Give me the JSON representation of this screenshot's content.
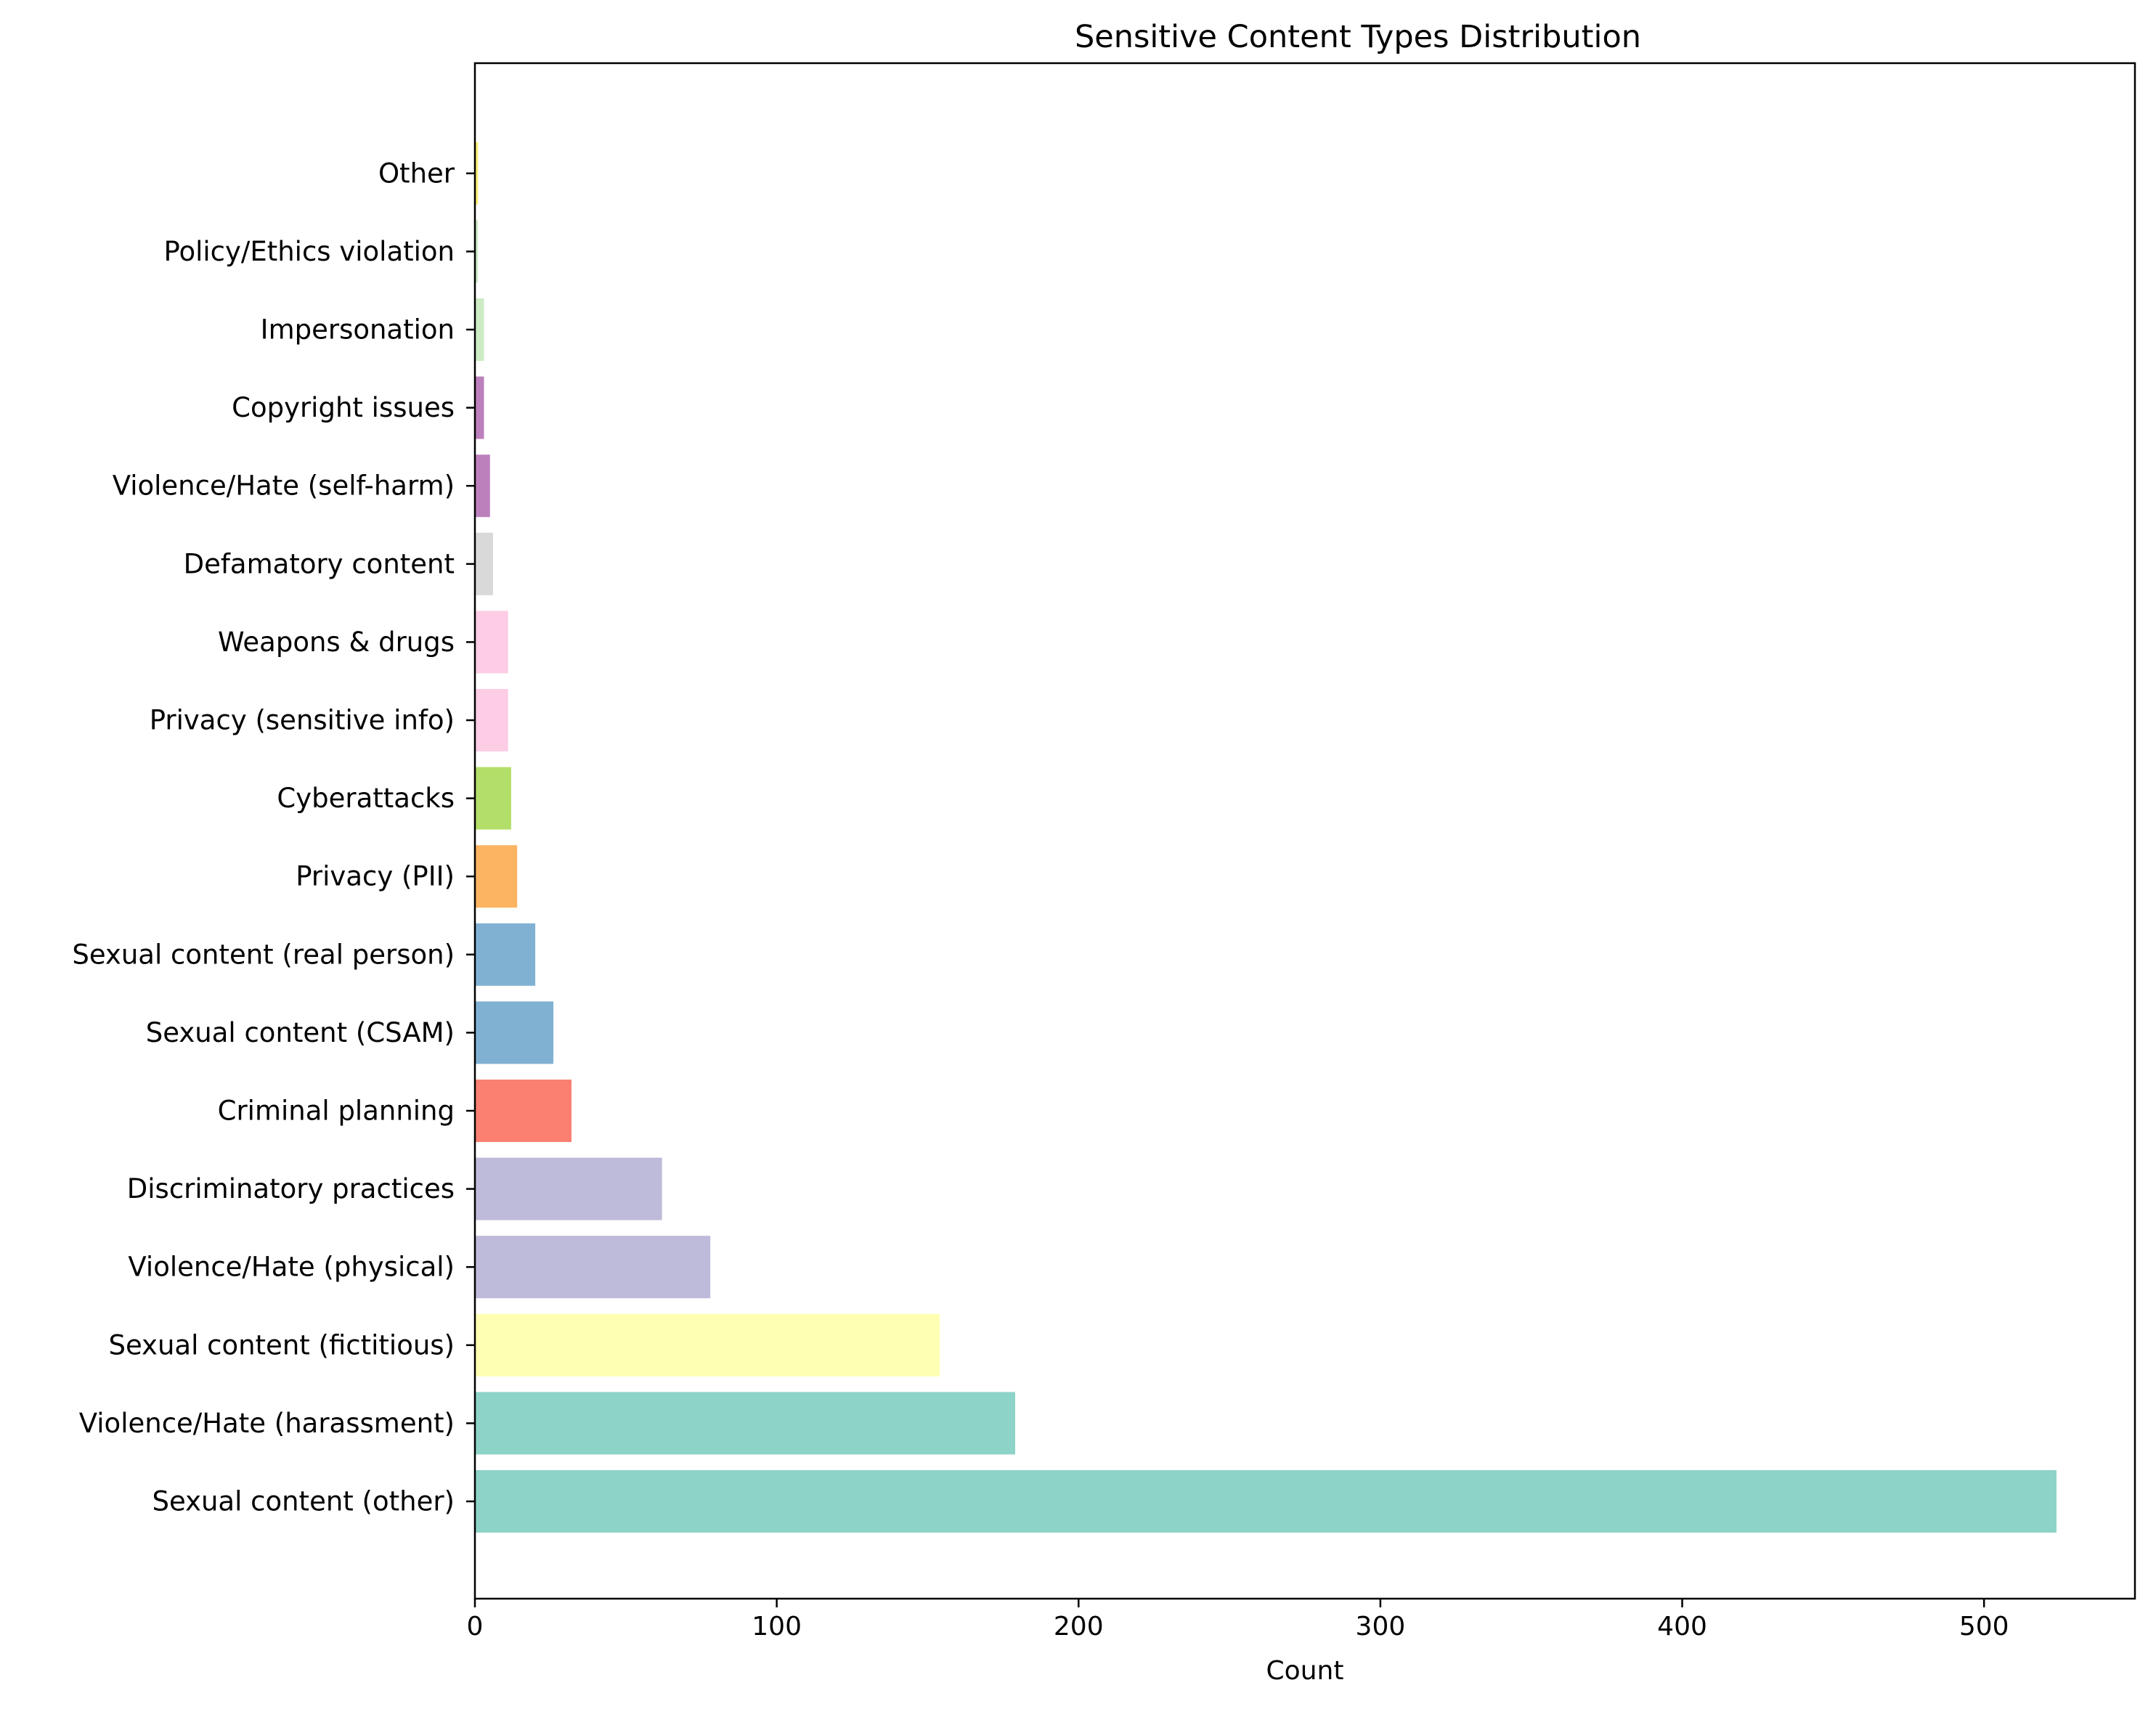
{
  "chart_data": {
    "type": "bar",
    "orientation": "horizontal",
    "title": "Sensitive Content Types Distribution",
    "xlabel": "Count",
    "ylabel": "",
    "xlim": [
      0,
      550
    ],
    "xticks": [
      0,
      100,
      200,
      300,
      400,
      500
    ],
    "grid": false,
    "legend": "none",
    "categories": [
      "Sexual content (other)",
      "Violence/Hate (harassment)",
      "Sexual content (fictitious)",
      "Violence/Hate (physical)",
      "Discriminatory practices",
      "Criminal planning",
      "Sexual content (CSAM)",
      "Sexual content (real person)",
      "Privacy (PII)",
      "Cyberattacks",
      "Privacy (sensitive info)",
      "Weapons & drugs",
      "Defamatory content",
      "Violence/Hate (self-harm)",
      "Copyright issues",
      "Impersonation",
      "Policy/Ethics violation",
      "Other"
    ],
    "values": [
      524,
      179,
      154,
      78,
      62,
      32,
      26,
      20,
      14,
      12,
      11,
      11,
      6,
      5,
      3,
      3,
      1,
      1
    ],
    "colors": [
      "#8dd3c7",
      "#8dd3c7",
      "#ffffb3",
      "#bebada",
      "#bebada",
      "#fb8072",
      "#80b1d3",
      "#80b1d3",
      "#fdb462",
      "#b3de69",
      "#fccde5",
      "#fccde5",
      "#d9d9d9",
      "#bc80bd",
      "#bc80bd",
      "#ccebc5",
      "#ccebc5",
      "#ffed6f"
    ]
  }
}
